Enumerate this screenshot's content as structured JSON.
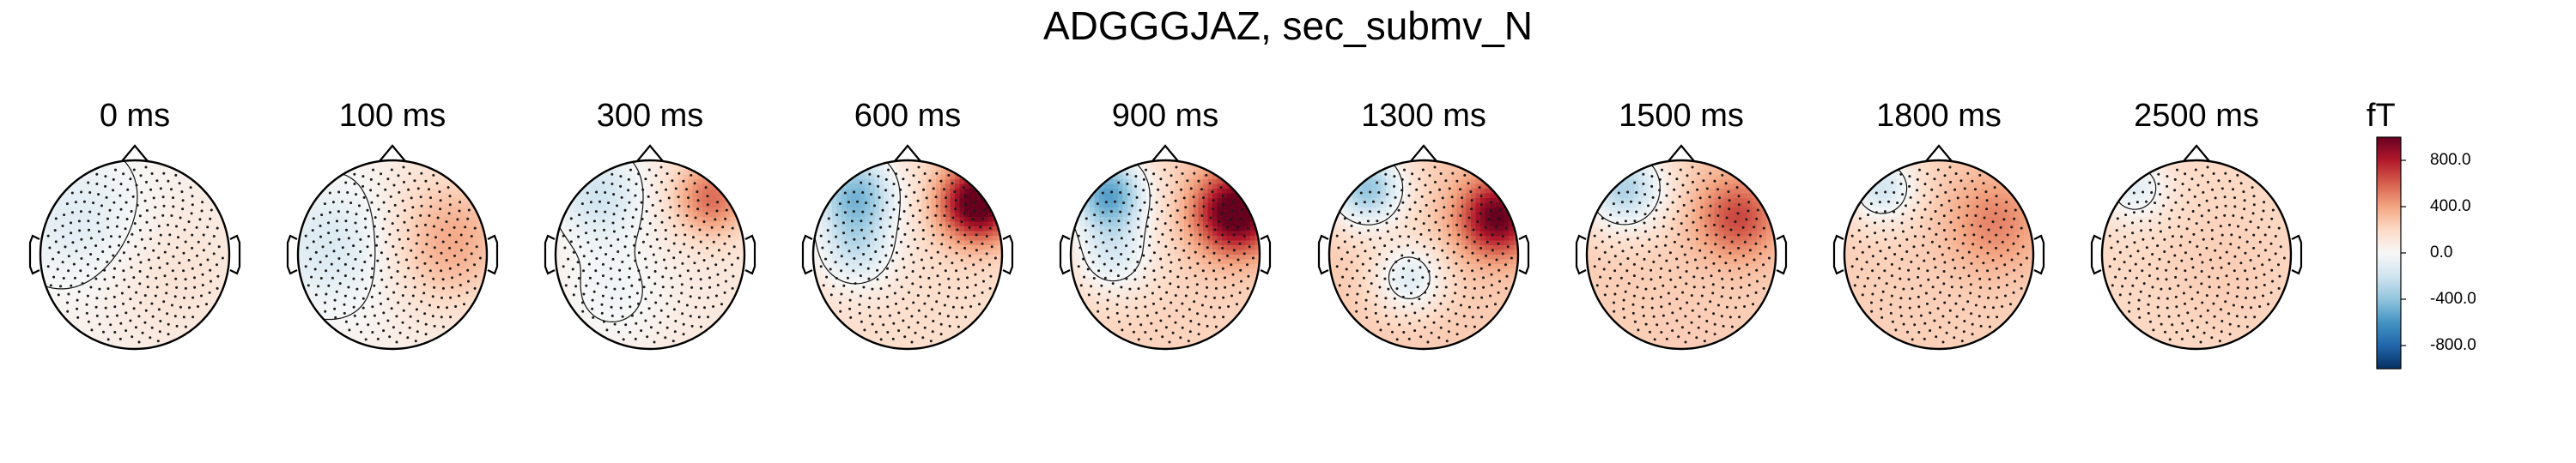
{
  "chart_data": {
    "type": "heatmap",
    "title": "ADGGGJAZ, sec_submv_N",
    "plot_kind": "topographic head maps",
    "times": [
      "0 ms",
      "100 ms",
      "300 ms",
      "600 ms",
      "900 ms",
      "1300 ms",
      "1500 ms",
      "1800 ms",
      "2500 ms"
    ],
    "colorbar": {
      "unit": "fT",
      "range": [
        -1000,
        1000
      ],
      "ticks": [
        800,
        400,
        0,
        -400,
        -800
      ],
      "tick_labels": [
        "800.0",
        "400.0",
        "0.0",
        "-400.0",
        "-800.0"
      ],
      "colormap": "RdBu_r",
      "colors": [
        "#053061",
        "#2166ac",
        "#4393c3",
        "#92c5de",
        "#d1e5f0",
        "#f7f7f7",
        "#fddbc7",
        "#f4a582",
        "#d6604d",
        "#b2182b",
        "#67001f"
      ]
    },
    "maps": [
      {
        "time": "0 ms",
        "base": 40,
        "sources": [
          {
            "u": -0.55,
            "v": -0.35,
            "amp": -170,
            "w": 0.5
          },
          {
            "u": 0.4,
            "v": 0.2,
            "amp": 110,
            "w": 0.6
          }
        ]
      },
      {
        "time": "100 ms",
        "base": 60,
        "sources": [
          {
            "u": -0.6,
            "v": -0.1,
            "amp": -220,
            "w": 0.5
          },
          {
            "u": 0.6,
            "v": -0.15,
            "amp": 330,
            "w": 0.5
          }
        ]
      },
      {
        "time": "300 ms",
        "base": 110,
        "sources": [
          {
            "u": -0.55,
            "v": -0.65,
            "amp": -300,
            "w": 0.35
          },
          {
            "u": 0.65,
            "v": -0.6,
            "amp": 450,
            "w": 0.28
          },
          {
            "u": -0.4,
            "v": 0.4,
            "amp": -140,
            "w": 0.45
          }
        ]
      },
      {
        "time": "600 ms",
        "base": 180,
        "sources": [
          {
            "u": -0.55,
            "v": -0.65,
            "amp": -600,
            "w": 0.3
          },
          {
            "u": 0.75,
            "v": -0.55,
            "amp": 950,
            "w": 0.28
          },
          {
            "u": -0.55,
            "v": -0.05,
            "amp": -360,
            "w": 0.3
          }
        ]
      },
      {
        "time": "900 ms",
        "base": 230,
        "sources": [
          {
            "u": -0.6,
            "v": -0.65,
            "amp": -750,
            "w": 0.28
          },
          {
            "u": 0.75,
            "v": -0.45,
            "amp": 900,
            "w": 0.3
          },
          {
            "u": -0.55,
            "v": 0.0,
            "amp": -350,
            "w": 0.3
          }
        ]
      },
      {
        "time": "1300 ms",
        "base": 260,
        "sources": [
          {
            "u": -0.6,
            "v": -0.7,
            "amp": -650,
            "w": 0.28
          },
          {
            "u": 0.78,
            "v": -0.4,
            "amp": 760,
            "w": 0.28
          },
          {
            "u": -0.15,
            "v": 0.25,
            "amp": -380,
            "w": 0.25
          }
        ]
      },
      {
        "time": "1500 ms",
        "base": 250,
        "sources": [
          {
            "u": -0.6,
            "v": -0.7,
            "amp": -560,
            "w": 0.3
          },
          {
            "u": 0.6,
            "v": -0.4,
            "amp": 420,
            "w": 0.3
          }
        ]
      },
      {
        "time": "1800 ms",
        "base": 240,
        "sources": [
          {
            "u": -0.6,
            "v": -0.7,
            "amp": -420,
            "w": 0.25
          },
          {
            "u": 0.6,
            "v": -0.35,
            "amp": 260,
            "w": 0.35
          }
        ]
      },
      {
        "time": "2500 ms",
        "base": 200,
        "sources": [
          {
            "u": -0.65,
            "v": -0.7,
            "amp": -300,
            "w": 0.25
          },
          {
            "u": 0.3,
            "v": 0.2,
            "amp": 50,
            "w": 0.5
          }
        ]
      }
    ]
  }
}
